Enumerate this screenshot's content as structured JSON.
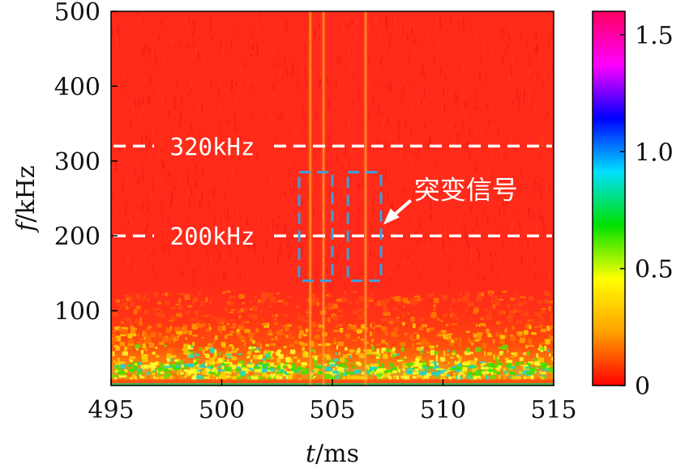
{
  "chart_data": {
    "type": "heatmap",
    "xlabel_var": "t",
    "xlabel_unit": "/ms",
    "ylabel_var": "f",
    "ylabel_unit": "/kHz",
    "xlim": [
      495,
      515
    ],
    "ylim": [
      0,
      500
    ],
    "xticks": [
      495,
      500,
      505,
      510,
      515
    ],
    "yticks": [
      100,
      200,
      300,
      400,
      500
    ],
    "colorbar": {
      "range": [
        0,
        1.6
      ],
      "ticks": [
        "0",
        "0.5",
        "1.0",
        "1.5"
      ],
      "tick_values": [
        0,
        0.5,
        1.0,
        1.5
      ],
      "colormap": [
        "#ff0000",
        "#ffa000",
        "#ffff00",
        "#00e000",
        "#00e0ff",
        "#0000ff",
        "#ff00ff",
        "#ff0060"
      ]
    },
    "background_color": "#ff2a1a",
    "low_frequency_band": {
      "f_range_kHz": [
        0,
        140
      ],
      "peak_level": 0.9,
      "colors": [
        "#ff6a00",
        "#ffd000",
        "#40e000",
        "#20e0c0"
      ]
    },
    "reference_lines": [
      {
        "f": 320,
        "label": "320kHz",
        "style": "dashed",
        "color": "#ffffff"
      },
      {
        "f": 200,
        "label": "200kHz",
        "style": "dashed",
        "color": "#ffffff"
      }
    ],
    "highlight_boxes": [
      {
        "t_range": [
          503.5,
          505.0
        ],
        "f_range": [
          140,
          285
        ],
        "color": "#3aa0e0"
      },
      {
        "t_range": [
          505.7,
          507.2
        ],
        "f_range": [
          140,
          285
        ],
        "color": "#3aa0e0"
      }
    ],
    "transient_lines": [
      {
        "t": 504.0,
        "f_range": [
          0,
          500
        ]
      },
      {
        "t": 504.6,
        "f_range": [
          0,
          500
        ]
      },
      {
        "t": 506.5,
        "f_range": [
          0,
          500
        ]
      }
    ],
    "annotation": {
      "text": "突变信号",
      "arrow_to": {
        "t": 507.3,
        "f": 215
      },
      "color": "#ffffff"
    }
  }
}
